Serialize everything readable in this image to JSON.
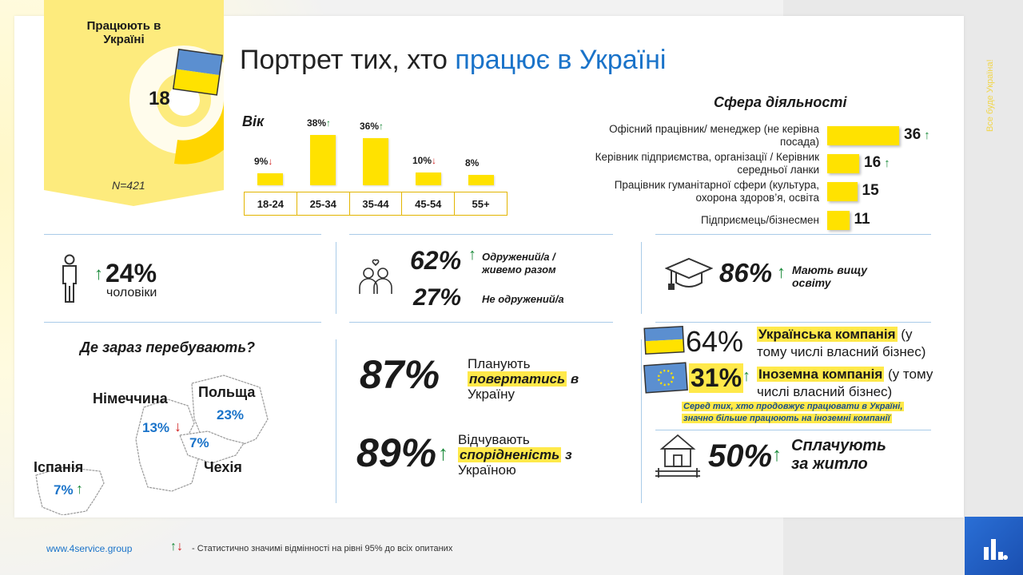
{
  "title": {
    "prefix": "Портрет тих, хто ",
    "accent": "працює в Україні"
  },
  "side_slogan": "Все буде Україна!",
  "badge": {
    "title": "Працюють в Україні",
    "value": "18",
    "sample": "N=421"
  },
  "chart_data": [
    {
      "type": "bar",
      "title": "Вік",
      "categories": [
        "18-24",
        "25-34",
        "35-44",
        "45-54",
        "55+"
      ],
      "values": [
        9,
        38,
        36,
        10,
        8
      ],
      "labels": [
        "9%",
        "38%",
        "36%",
        "10%",
        "8%"
      ],
      "significance": [
        "down",
        "up",
        "up",
        "down",
        "none"
      ]
    },
    {
      "type": "bar",
      "orientation": "horizontal",
      "title": "Сфера діяльності",
      "categories": [
        "Офісний працівник/ менеджер (не керівна посада)",
        "Керівник підприємства, організації / Керівник середньої ланки",
        "Працівник гуманітарної сфери (культура, охорона здоров’я, освіта",
        "Підприємець/бізнесмен"
      ],
      "values": [
        36,
        16,
        15,
        11
      ],
      "significance": [
        "up",
        "up",
        "none",
        "none"
      ]
    }
  ],
  "men": {
    "value": "24%",
    "label": "чоловіки"
  },
  "marital": {
    "married_value": "62%",
    "married_label": "Одружений/а / живемо разом",
    "single_value": "27%",
    "single_label": "Не одружений/а"
  },
  "education": {
    "value": "86%",
    "label": "Мають вищу освіту"
  },
  "location": {
    "title": "Де зараз перебувають?",
    "countries": [
      {
        "name": "Німеччина",
        "value": "13%"
      },
      {
        "name": "Польща",
        "value": "23%"
      },
      {
        "name": "Чехія",
        "value": "7%"
      },
      {
        "name": "Іспанія",
        "value": "7%"
      }
    ]
  },
  "plan_return": {
    "value": "87%",
    "pre": "Планують",
    "hl": "повертатись",
    "post1": "в",
    "post2": "Україну"
  },
  "connection": {
    "value": "89%",
    "pre": "Відчувають",
    "hl": "спорідненість",
    "post1": "з",
    "post2": "Україною"
  },
  "company": {
    "ua_value": "64%",
    "ua_hl": "Українська компанія",
    "ua_rest1": " (у",
    "ua_rest2": "тому числі власний бізнес)",
    "foreign_value": "31%",
    "foreign_hl": "Іноземна компанія",
    "foreign_rest1": " (у тому",
    "foreign_rest2": "числі власний бізнес)",
    "note1": "Серед тих, хто продовжує працювати в Україні,",
    "note2": "значно більше працюють на іноземні компанії"
  },
  "housing": {
    "value": "50%",
    "label1": "Сплачують",
    "label2": "за житло"
  },
  "footer": {
    "url": "www.4service.group",
    "note": "- Статистично значимі відмінності на рівні 95% до всіх опитаних"
  },
  "colors": {
    "accent": "#1a73c9",
    "highlight": "#ffe200",
    "up": "#1a8a3a",
    "down": "#d02020"
  }
}
